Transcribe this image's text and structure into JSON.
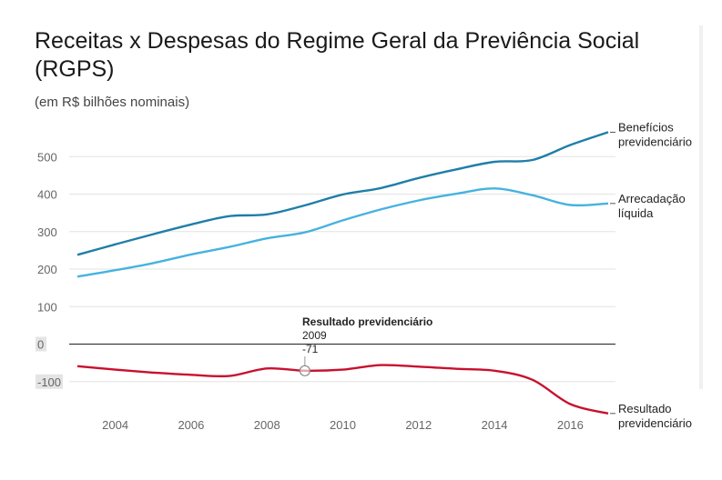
{
  "title": "Receitas x Despesas do Regime Geral da Previência Social (RGPS)",
  "subtitle": "(em R$ bilhões nominais)",
  "tooltip": {
    "series": "Resultado previdenciário",
    "year": "2009",
    "value": "-71"
  },
  "chart_data": {
    "type": "line",
    "x": [
      2003,
      2004,
      2005,
      2006,
      2007,
      2008,
      2009,
      2010,
      2011,
      2012,
      2013,
      2014,
      2015,
      2016,
      2017
    ],
    "xticks": [
      "2004",
      "2006",
      "2008",
      "2010",
      "2012",
      "2014",
      "2016"
    ],
    "yticks": [
      "-100",
      "0",
      "100",
      "200",
      "300",
      "400",
      "500"
    ],
    "ylim": [
      -190,
      610
    ],
    "series": [
      {
        "name": "Benefícios previdenciário",
        "name_lines": [
          "Benefícios",
          "previdenciário"
        ],
        "color": "#1f7ea8",
        "values": [
          238,
          266,
          293,
          319,
          341,
          346,
          370,
          399,
          416,
          443,
          466,
          486,
          491,
          531,
          565
        ]
      },
      {
        "name": "Arrecadação líquida",
        "name_lines": [
          "Arrecadação",
          "líquida"
        ],
        "color": "#46b2e0",
        "values": [
          180,
          197,
          216,
          239,
          259,
          282,
          298,
          330,
          359,
          383,
          401,
          415,
          397,
          371,
          375
        ]
      },
      {
        "name": "Resultado previdenciário",
        "name_lines": [
          "Resultado",
          "previdenciário"
        ],
        "color": "#c8102e",
        "values": [
          -59,
          -68,
          -76,
          -82,
          -85,
          -65,
          -71,
          -68,
          -56,
          -60,
          -66,
          -71,
          -95,
          -160,
          -185
        ]
      }
    ]
  }
}
